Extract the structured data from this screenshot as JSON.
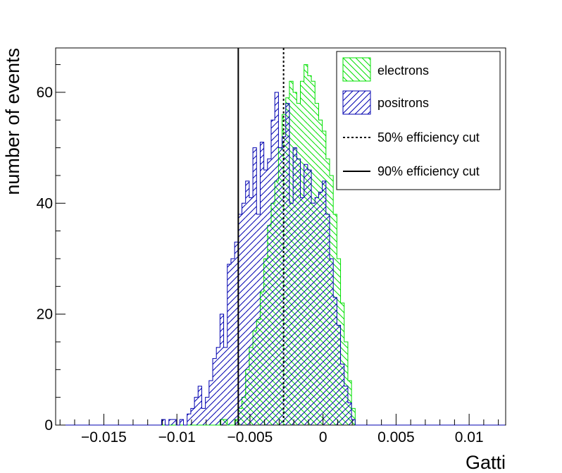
{
  "chart_data": {
    "type": "histogram",
    "xlabel": "Gatti",
    "ylabel": "number of events",
    "xlim": [
      -0.0183,
      0.0125
    ],
    "ylim": [
      0,
      68
    ],
    "bin_start": -0.0183,
    "bin_width": 0.00025,
    "x_ticks": [
      -0.015,
      -0.01,
      -0.005,
      0,
      0.005,
      0.01
    ],
    "x_tick_labels": [
      "−0.015",
      "−0.01",
      "−0.005",
      "0",
      "0.005",
      "0.01"
    ],
    "y_ticks": [
      0,
      20,
      40,
      60
    ],
    "y_tick_labels": [
      "0",
      "20",
      "40",
      "60"
    ],
    "series": [
      {
        "name": "electrons",
        "color": "#00e000",
        "hatch": "down-right",
        "counts": [
          0,
          0,
          0,
          0,
          0,
          0,
          0,
          0,
          0,
          0,
          0,
          0,
          0,
          0,
          0,
          0,
          0,
          0,
          0,
          0,
          0,
          0,
          0,
          0,
          0,
          0,
          0,
          0,
          0,
          0,
          0,
          0,
          0,
          0,
          0,
          0,
          0,
          0,
          0,
          0,
          0,
          0,
          0,
          0,
          0,
          1,
          1,
          0,
          0,
          1,
          3,
          5,
          10,
          14,
          17,
          19,
          24,
          30,
          36,
          40,
          44,
          50,
          56,
          59,
          62,
          60,
          58,
          62,
          65,
          63,
          62,
          58,
          55,
          53,
          48,
          45,
          38,
          30,
          22,
          15,
          8,
          3,
          0,
          0,
          0,
          0,
          0,
          0,
          0,
          0,
          0,
          0,
          0,
          0,
          0,
          0,
          0,
          0,
          0,
          0,
          0,
          0,
          0,
          0,
          0,
          0,
          0,
          0,
          0,
          0,
          0,
          0,
          0,
          0,
          0,
          0,
          0,
          0,
          0,
          0,
          0,
          0
        ]
      },
      {
        "name": "positrons",
        "color": "#0000b0",
        "hatch": "up-right",
        "counts": [
          0,
          0,
          0,
          0,
          0,
          0,
          0,
          0,
          0,
          0,
          0,
          0,
          0,
          0,
          0,
          0,
          0,
          0,
          0,
          0,
          0,
          0,
          0,
          0,
          0,
          0,
          0,
          0,
          0,
          1,
          0,
          1,
          1,
          0,
          1,
          0,
          2,
          3,
          5,
          7,
          3,
          5,
          8,
          12,
          14,
          20,
          14,
          29,
          30,
          33,
          38,
          40,
          44,
          41,
          50,
          38,
          51,
          46,
          48,
          55,
          60,
          50,
          52,
          58,
          40,
          50,
          48,
          41,
          47,
          46,
          40,
          41,
          42,
          44,
          38,
          30,
          23,
          18,
          11,
          7,
          4,
          1,
          0,
          0,
          0,
          0,
          0,
          0,
          0,
          0,
          0,
          0,
          0,
          0,
          0,
          0,
          0,
          0,
          0,
          0,
          0,
          0,
          0,
          0,
          0,
          0,
          0,
          0,
          0,
          0,
          0,
          0,
          0,
          0,
          0,
          0,
          0,
          0,
          0,
          0,
          0,
          0,
          0
        ]
      }
    ],
    "cut_lines": [
      {
        "name": "50% efficiency cut",
        "x": -0.0027,
        "style": "dotted"
      },
      {
        "name": "90% efficiency cut",
        "x": -0.0058,
        "style": "solid"
      }
    ],
    "legend": {
      "position": "top-right",
      "entries": [
        "electrons",
        "positrons",
        "50% efficiency cut",
        "90% efficiency cut"
      ]
    }
  }
}
